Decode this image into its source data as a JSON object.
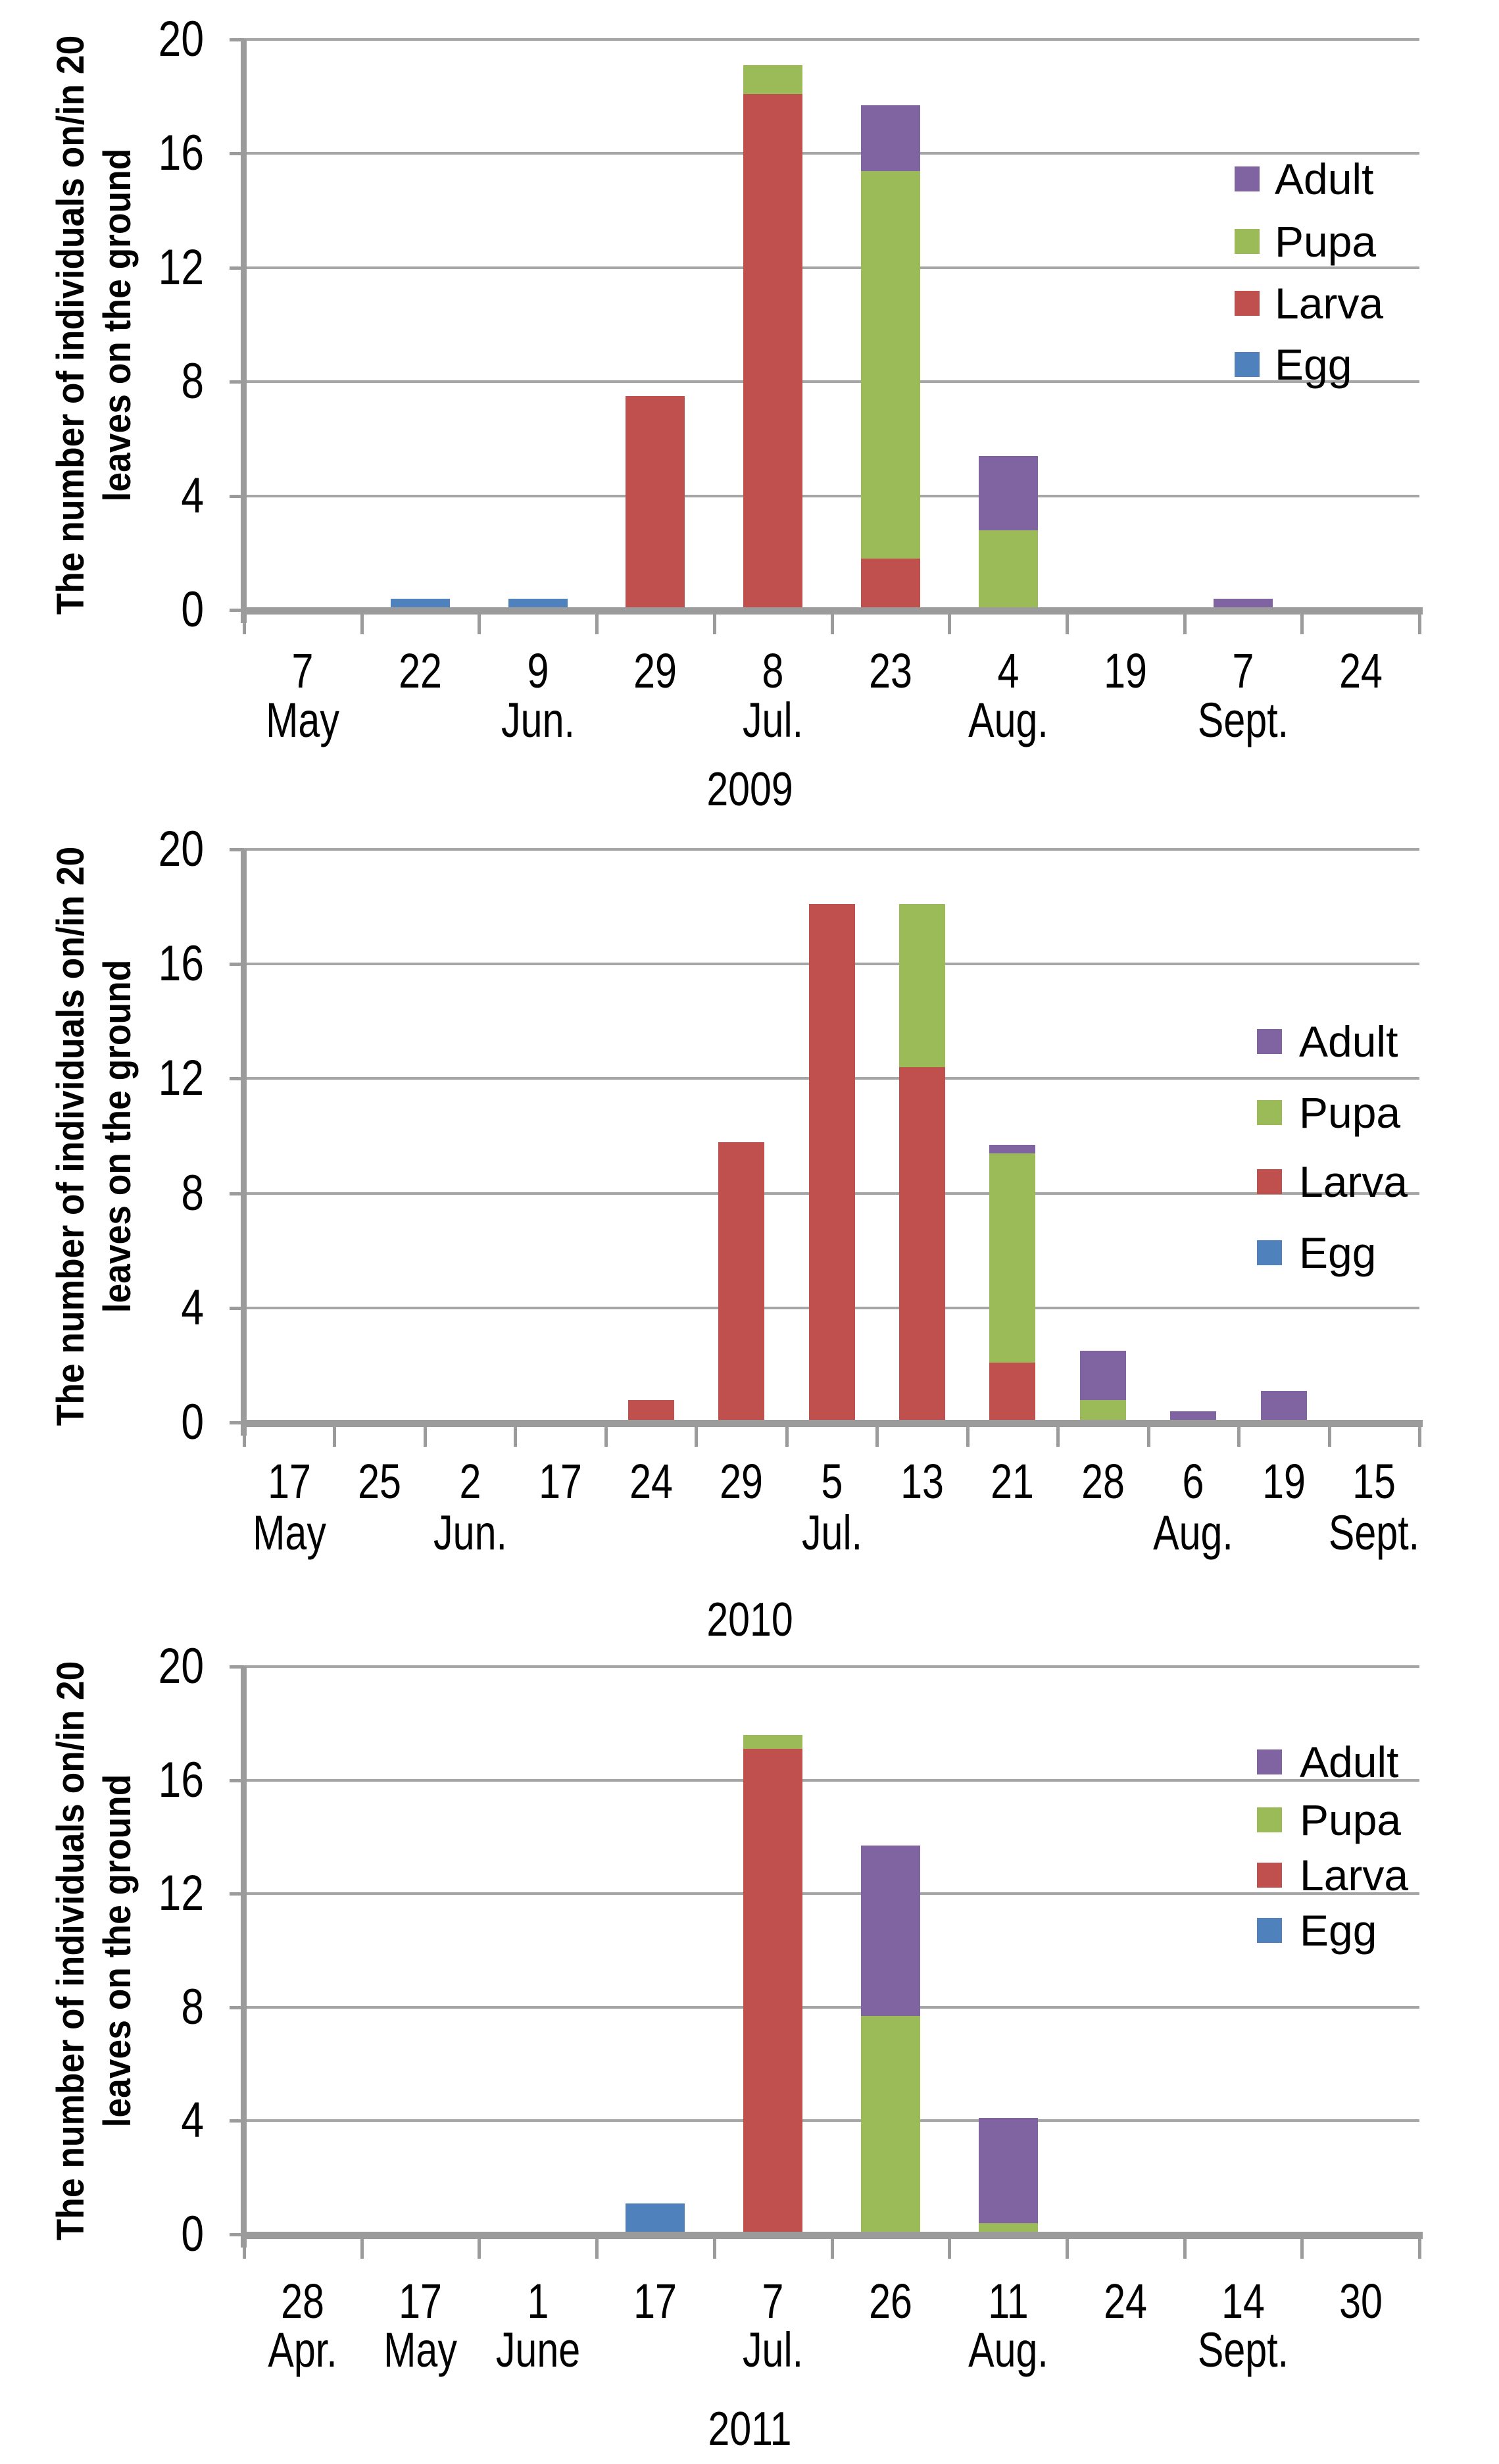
{
  "figure": {
    "background": "#ffffff",
    "y_axis_title_line1": "The number of individuals on/in 20",
    "y_axis_title_line2": "leaves on the ground"
  },
  "colors": {
    "adult": "#8064A2",
    "pupa": "#9BBB59",
    "larva": "#C0504D",
    "egg": "#4F81BD",
    "axis": "#9B9B9B",
    "gridline": "#A6A6A6",
    "text": "#000000"
  },
  "legend": {
    "items": [
      {
        "label": "Adult",
        "color_key": "adult"
      },
      {
        "label": "Pupa",
        "color_key": "pupa"
      },
      {
        "label": "Larva",
        "color_key": "larva"
      },
      {
        "label": "Egg",
        "color_key": "egg"
      }
    ]
  },
  "chart_data": [
    {
      "type": "bar",
      "stacked": true,
      "title": "2009",
      "ylabel": "The number of individuals on/in 20 leaves on the ground",
      "ylim": [
        0,
        20
      ],
      "yticks": [
        20,
        16,
        12,
        8,
        4,
        0
      ],
      "grid": true,
      "legend_position": "right-upper",
      "categories": [
        {
          "date": "7",
          "month": "May"
        },
        {
          "date": "22",
          "month": ""
        },
        {
          "date": "9",
          "month": "Jun."
        },
        {
          "date": "29",
          "month": ""
        },
        {
          "date": "8",
          "month": "Jul."
        },
        {
          "date": "23",
          "month": ""
        },
        {
          "date": "4",
          "month": "Aug."
        },
        {
          "date": "19",
          "month": ""
        },
        {
          "date": "7",
          "month": "Sept."
        },
        {
          "date": "24",
          "month": ""
        }
      ],
      "series": [
        {
          "name": "Egg",
          "color_key": "egg",
          "values": [
            0,
            0.3,
            0.3,
            0,
            0,
            0,
            0,
            0,
            0,
            0
          ]
        },
        {
          "name": "Larva",
          "color_key": "larva",
          "values": [
            0,
            0,
            0,
            7.4,
            18.0,
            1.7,
            0,
            0,
            0,
            0
          ]
        },
        {
          "name": "Pupa",
          "color_key": "pupa",
          "values": [
            0,
            0,
            0,
            0,
            1.0,
            13.6,
            2.7,
            0,
            0,
            0
          ]
        },
        {
          "name": "Adult",
          "color_key": "adult",
          "values": [
            0,
            0,
            0,
            0,
            0,
            2.3,
            2.6,
            0,
            0.3,
            0
          ]
        }
      ]
    },
    {
      "type": "bar",
      "stacked": true,
      "title": "2010",
      "ylabel": "The number of individuals on/in 20 leaves on the ground",
      "ylim": [
        0,
        20
      ],
      "yticks": [
        20,
        16,
        12,
        8,
        4,
        0
      ],
      "grid": true,
      "legend_position": "right-upper",
      "categories": [
        {
          "date": "17",
          "month": "May"
        },
        {
          "date": "25",
          "month": ""
        },
        {
          "date": "2",
          "month": "Jun."
        },
        {
          "date": "17",
          "month": ""
        },
        {
          "date": "24",
          "month": ""
        },
        {
          "date": "29",
          "month": ""
        },
        {
          "date": "5",
          "month": "Jul."
        },
        {
          "date": "13",
          "month": ""
        },
        {
          "date": "21",
          "month": ""
        },
        {
          "date": "28",
          "month": ""
        },
        {
          "date": "6",
          "month": "Aug."
        },
        {
          "date": "19",
          "month": ""
        },
        {
          "date": "15",
          "month": "Sept."
        }
      ],
      "series": [
        {
          "name": "Egg",
          "color_key": "egg",
          "values": [
            0,
            0,
            0,
            0,
            0,
            0,
            0,
            0,
            0,
            0,
            0,
            0,
            0
          ]
        },
        {
          "name": "Larva",
          "color_key": "larva",
          "values": [
            0,
            0,
            0,
            0,
            0.7,
            9.7,
            18.0,
            12.3,
            2.0,
            0,
            0,
            0,
            0
          ]
        },
        {
          "name": "Pupa",
          "color_key": "pupa",
          "values": [
            0,
            0,
            0,
            0,
            0,
            0,
            0,
            5.7,
            7.3,
            0.7,
            0,
            0,
            0
          ]
        },
        {
          "name": "Adult",
          "color_key": "adult",
          "values": [
            0,
            0,
            0,
            0,
            0,
            0,
            0,
            0,
            0.3,
            1.7,
            0.3,
            1.0,
            0
          ]
        }
      ]
    },
    {
      "type": "bar",
      "stacked": true,
      "title": "2011",
      "ylabel": "The number of individuals on/in 20 leaves on the ground",
      "ylim": [
        0,
        20
      ],
      "yticks": [
        20,
        16,
        12,
        8,
        4,
        0
      ],
      "grid": true,
      "legend_position": "right-upper",
      "categories": [
        {
          "date": "28",
          "month": "Apr."
        },
        {
          "date": "17",
          "month": "May"
        },
        {
          "date": "1",
          "month": "June"
        },
        {
          "date": "17",
          "month": ""
        },
        {
          "date": "7",
          "month": "Jul."
        },
        {
          "date": "26",
          "month": ""
        },
        {
          "date": "11",
          "month": "Aug."
        },
        {
          "date": "24",
          "month": ""
        },
        {
          "date": "14",
          "month": "Sept."
        },
        {
          "date": "30",
          "month": ""
        }
      ],
      "series": [
        {
          "name": "Egg",
          "color_key": "egg",
          "values": [
            0,
            0,
            0,
            1.0,
            0,
            0,
            0,
            0,
            0,
            0
          ]
        },
        {
          "name": "Larva",
          "color_key": "larva",
          "values": [
            0,
            0,
            0,
            0,
            17.0,
            0,
            0,
            0,
            0,
            0
          ]
        },
        {
          "name": "Pupa",
          "color_key": "pupa",
          "values": [
            0,
            0,
            0,
            0,
            0.5,
            7.6,
            0.3,
            0,
            0,
            0
          ]
        },
        {
          "name": "Adult",
          "color_key": "adult",
          "values": [
            0,
            0,
            0,
            0,
            0,
            6.0,
            3.7,
            0,
            0,
            0
          ]
        }
      ]
    }
  ]
}
